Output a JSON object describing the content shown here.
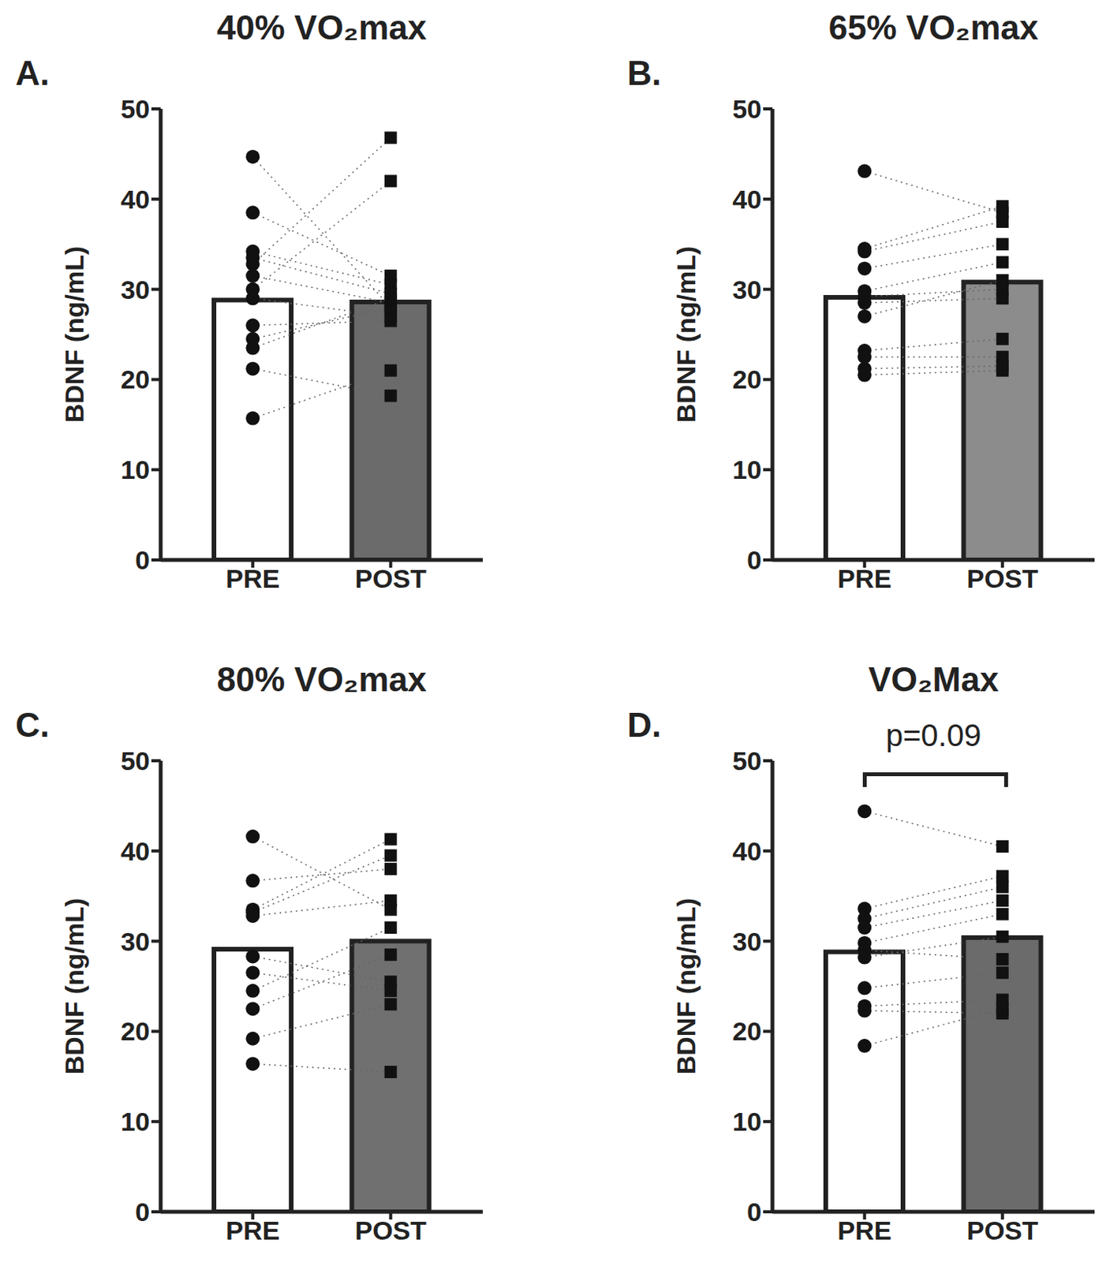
{
  "chart_data": [
    {
      "type": "bar",
      "panel": "A.",
      "title": "40% VO₂max",
      "y_label": "BDNF (ng/mL)",
      "categories": [
        "PRE",
        "POST"
      ],
      "values": [
        28.8,
        28.6
      ],
      "colors": [
        "#ffffff",
        "#6b6b6b"
      ],
      "ylim": [
        0,
        50
      ],
      "yticks": [
        0,
        10,
        20,
        30,
        40,
        50
      ],
      "line_style": "dotted",
      "subjects": [
        [
          44.7,
          28.0
        ],
        [
          38.5,
          31.5
        ],
        [
          34.2,
          30.5
        ],
        [
          33.5,
          29.5
        ],
        [
          32.8,
          46.8
        ],
        [
          31.5,
          28.5
        ],
        [
          30.0,
          42.0
        ],
        [
          29.0,
          27.0
        ],
        [
          26.0,
          26.5
        ],
        [
          24.5,
          28.0
        ],
        [
          23.5,
          29.0
        ],
        [
          21.2,
          18.2
        ],
        [
          15.7,
          21.0
        ]
      ]
    },
    {
      "type": "bar",
      "panel": "B.",
      "title": "65% VO₂max",
      "y_label": "BDNF (ng/mL)",
      "categories": [
        "PRE",
        "POST"
      ],
      "values": [
        29.1,
        30.8
      ],
      "colors": [
        "#ffffff",
        "#8c8c8c"
      ],
      "ylim": [
        0,
        50
      ],
      "yticks": [
        0,
        10,
        20,
        30,
        40,
        50
      ],
      "line_style": "dotted",
      "subjects": [
        [
          43.1,
          38.5
        ],
        [
          34.5,
          39.2
        ],
        [
          34.2,
          37.5
        ],
        [
          32.3,
          35.0
        ],
        [
          29.8,
          33.0
        ],
        [
          29.2,
          30.0
        ],
        [
          28.5,
          29.0
        ],
        [
          27.0,
          31.0
        ],
        [
          23.2,
          24.5
        ],
        [
          22.5,
          22.5
        ],
        [
          21.2,
          21.5
        ],
        [
          20.5,
          21.0
        ]
      ]
    },
    {
      "type": "bar",
      "panel": "C.",
      "title": "80% VO₂max",
      "y_label": "BDNF (ng/mL)",
      "categories": [
        "PRE",
        "POST"
      ],
      "values": [
        29.1,
        30.0
      ],
      "colors": [
        "#ffffff",
        "#707070"
      ],
      "ylim": [
        0,
        50
      ],
      "yticks": [
        0,
        10,
        20,
        30,
        40,
        50
      ],
      "line_style": "dotted",
      "subjects": [
        [
          41.6,
          33.5
        ],
        [
          36.7,
          38.0
        ],
        [
          33.5,
          41.3
        ],
        [
          33.2,
          39.5
        ],
        [
          32.8,
          34.5
        ],
        [
          28.3,
          25.5
        ],
        [
          26.5,
          24.5
        ],
        [
          24.5,
          31.5
        ],
        [
          22.5,
          28.5
        ],
        [
          19.2,
          23.0
        ],
        [
          16.4,
          15.5
        ]
      ]
    },
    {
      "type": "bar",
      "panel": "D.",
      "title": "VO₂Max",
      "y_label": "BDNF (ng/mL)",
      "categories": [
        "PRE",
        "POST"
      ],
      "values": [
        28.8,
        30.4
      ],
      "colors": [
        "#ffffff",
        "#6b6b6b"
      ],
      "ylim": [
        0,
        50
      ],
      "yticks": [
        0,
        10,
        20,
        30,
        40,
        50
      ],
      "line_style": "dotted",
      "annotation": "p=0.09",
      "subjects": [
        [
          44.4,
          40.5
        ],
        [
          33.6,
          37.2
        ],
        [
          32.5,
          36.0
        ],
        [
          31.5,
          34.5
        ],
        [
          29.8,
          33.0
        ],
        [
          28.2,
          30.5
        ],
        [
          24.8,
          26.5
        ],
        [
          22.8,
          23.5
        ],
        [
          22.3,
          22.0
        ],
        [
          18.4,
          22.5
        ],
        [
          29.0,
          28.0
        ]
      ]
    }
  ]
}
